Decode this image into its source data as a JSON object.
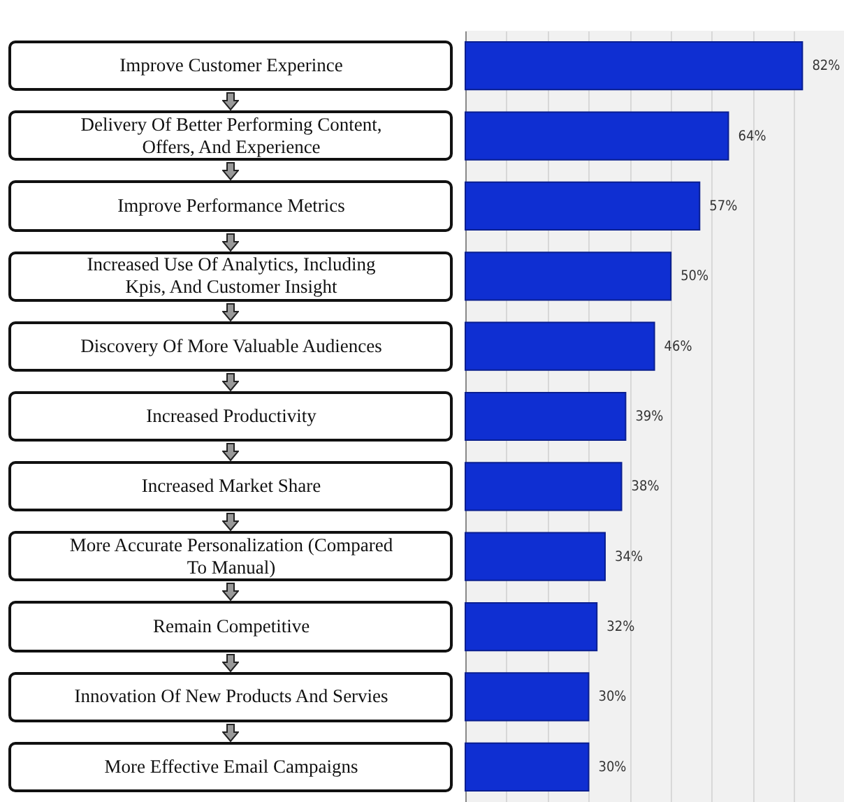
{
  "chart_data": {
    "type": "bar",
    "orientation": "horizontal",
    "categories": [
      "Improve Customer Experince",
      "Delivery Of Better Performing Content, Offers, And Experience",
      "Improve Performance Metrics",
      "Increased Use Of Analytics, Including Kpis, And Customer Insight",
      "Discovery Of More Valuable Audiences",
      "Increased Productivity",
      "Increased Market Share",
      "More Accurate Personalization (Compared To Manual)",
      "Remain Competitive",
      "Innovation Of New Products And Servies",
      "More Effective Email Campaigns"
    ],
    "values": [
      82,
      64,
      57,
      50,
      46,
      39,
      38,
      34,
      32,
      30,
      30
    ],
    "value_labels": [
      "82%",
      "64%",
      "57%",
      "50%",
      "46%",
      "39%",
      "38%",
      "34%",
      "32%",
      "30%",
      "30%"
    ],
    "color": "#0f2fd2",
    "grid": "x",
    "tick_labels": "y"
  }
}
